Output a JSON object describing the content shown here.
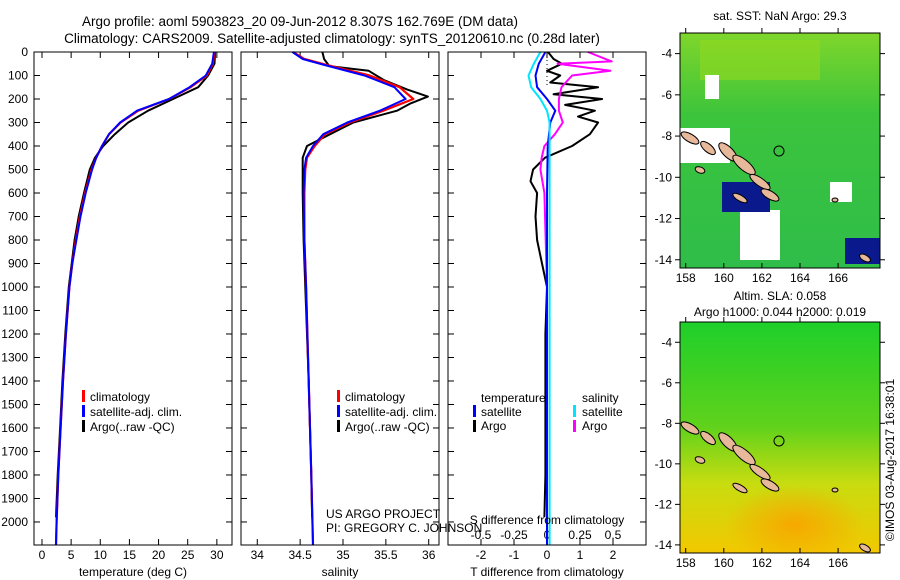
{
  "header": {
    "title_line1": "Argo profile: aoml 5903823_20 09-Jun-2012 8.307S 162.769E (DM data)",
    "title_line2": "Climatology: CARS2009. Satellite-adjusted climatology: synTS_20120610.nc (0.28d later)"
  },
  "colors": {
    "climatology": "#ff0000",
    "satellite": "#0000ff",
    "argo": "#000000",
    "sal_satellite": "#00e5ff",
    "sal_argo": "#ff00ff"
  },
  "chart_data": [
    {
      "type": "line",
      "title": "",
      "xlabel": "temperature (deg C)",
      "ylabel": "",
      "xlim": [
        -1.37,
        32.6
      ],
      "ylim": [
        2098,
        0
      ],
      "xticks": [
        0,
        5,
        10,
        15,
        20,
        25,
        30
      ],
      "yticks": [
        0,
        100,
        200,
        300,
        400,
        500,
        600,
        700,
        800,
        900,
        1000,
        1100,
        1200,
        1300,
        1400,
        1500,
        1600,
        1700,
        1800,
        1900,
        2000
      ],
      "legend": {
        "placement": "lower-center",
        "entries": [
          "climatology",
          "satellite-adj. clim.",
          "Argo(..raw -QC)"
        ]
      },
      "series": [
        {
          "name": "climatology",
          "depth": [
            0,
            50,
            100,
            150,
            200,
            250,
            300,
            350,
            400,
            450,
            500,
            600,
            700,
            800,
            900,
            1000,
            1200,
            1400,
            1600,
            1800,
            2000,
            2098
          ],
          "values": [
            29.6,
            29.3,
            28.3,
            25.5,
            21.8,
            16.5,
            13.5,
            11.5,
            10.3,
            9.3,
            8.5,
            7.4,
            6.5,
            5.8,
            5.2,
            4.7,
            4.1,
            3.6,
            3.2,
            2.8,
            2.5,
            2.4
          ]
        },
        {
          "name": "satellite-adj. clim.",
          "depth": [
            0,
            50,
            100,
            150,
            200,
            250,
            300,
            350,
            400,
            450,
            500,
            600,
            700,
            800,
            900,
            1000,
            1200,
            1400,
            1600,
            1800,
            2000,
            2098
          ],
          "values": [
            29.5,
            29.2,
            28.1,
            25.3,
            21.8,
            16.3,
            13.4,
            11.5,
            10.3,
            9.3,
            8.6,
            7.5,
            6.6,
            5.9,
            5.2,
            4.7,
            4.1,
            3.6,
            3.2,
            2.8,
            2.5,
            2.4
          ]
        },
        {
          "name": "Argo(..raw -QC)",
          "depth": [
            0,
            50,
            100,
            150,
            200,
            250,
            300,
            350,
            400,
            450,
            500,
            600,
            700,
            800,
            900,
            1000,
            1200,
            1400,
            1600,
            1800,
            1980
          ],
          "values": [
            29.7,
            29.6,
            28.5,
            26.8,
            22.5,
            18.2,
            14.8,
            12.5,
            10.5,
            9.1,
            8.2,
            7.2,
            6.3,
            5.6,
            5.1,
            4.6,
            4.0,
            3.5,
            3.1,
            2.7,
            2.4
          ]
        }
      ]
    },
    {
      "type": "line",
      "xlabel": "salinity",
      "xlim": [
        33.81,
        36.12
      ],
      "ylim": [
        2098,
        0
      ],
      "xticks": [
        34,
        34.5,
        35,
        35.5,
        36
      ],
      "legend": {
        "placement": "lower-center",
        "entries": [
          "climatology",
          "satellite-adj. clim.",
          "Argo(..raw -QC)"
        ]
      },
      "annotations": [
        "US ARGO PROJECT",
        "PI: GREGORY C. JOHNSON"
      ],
      "series": [
        {
          "name": "climatology",
          "depth": [
            0,
            30,
            55,
            100,
            150,
            200,
            250,
            300,
            350,
            400,
            450,
            500,
            600,
            800,
            1000,
            1400,
            1800,
            2098
          ],
          "values": [
            34.42,
            34.55,
            34.81,
            35.31,
            35.66,
            35.82,
            35.47,
            35.08,
            34.79,
            34.67,
            34.58,
            34.56,
            34.55,
            34.55,
            34.57,
            34.6,
            34.63,
            34.65
          ]
        },
        {
          "name": "satellite-adj. clim.",
          "depth": [
            0,
            30,
            55,
            100,
            150,
            200,
            250,
            300,
            350,
            400,
            450,
            500,
            600,
            800,
            1000,
            1400,
            1800,
            2098
          ],
          "values": [
            34.41,
            34.53,
            34.78,
            35.25,
            35.6,
            35.73,
            35.43,
            35.05,
            34.77,
            34.65,
            34.57,
            34.55,
            34.54,
            34.55,
            34.57,
            34.6,
            34.63,
            34.65
          ]
        },
        {
          "name": "Argo(..raw -QC)",
          "depth": [
            0,
            30,
            60,
            80,
            120,
            160,
            190,
            220,
            250,
            300,
            350,
            400,
            450,
            600,
            800,
            1000,
            1400,
            1800,
            1980
          ],
          "values": [
            34.76,
            34.78,
            34.84,
            35.3,
            35.48,
            35.75,
            35.99,
            35.78,
            35.63,
            35.12,
            34.85,
            34.58,
            34.53,
            34.53,
            34.54,
            34.56,
            34.6,
            34.63,
            34.64
          ]
        }
      ]
    },
    {
      "type": "line",
      "xlabel": "T difference from climatology",
      "x2label": "S difference from climatology",
      "xlim": [
        -3,
        3
      ],
      "x2lim": [
        -0.75,
        0.75
      ],
      "xticks": [
        -2,
        -1,
        0,
        1,
        2
      ],
      "x2ticks": [
        -0.5,
        -0.25,
        0,
        0.25,
        0.5
      ],
      "ylim": [
        2098,
        0
      ],
      "legend": {
        "placement": "lower-center",
        "temperature_title": "temperature",
        "salinity_title": "salinity",
        "entries": [
          "satellite",
          "Argo",
          "satellite",
          "Argo"
        ]
      },
      "series": [
        {
          "name": "temperature satellite",
          "variable": "T",
          "depth": [
            0,
            50,
            100,
            150,
            200,
            250,
            300,
            400,
            600,
            1000,
            2098
          ],
          "values": [
            -0.05,
            -0.25,
            -0.35,
            -0.3,
            0.0,
            0.25,
            0.1,
            0.02,
            0.0,
            0.0,
            0.0
          ]
        },
        {
          "name": "temperature Argo",
          "variable": "T",
          "depth": [
            0,
            30,
            50,
            80,
            100,
            130,
            150,
            180,
            200,
            225,
            250,
            275,
            300,
            350,
            400,
            450,
            500,
            550,
            600,
            700,
            800,
            900,
            1000,
            1200,
            1500,
            1800,
            1980
          ],
          "values": [
            0.03,
            0.2,
            0.45,
            0.0,
            0.4,
            0.1,
            1.55,
            0.2,
            1.67,
            0.55,
            1.45,
            0.94,
            1.55,
            1.3,
            0.76,
            -0.06,
            -0.42,
            -0.5,
            -0.3,
            -0.35,
            -0.3,
            -0.15,
            0.0,
            -0.05,
            -0.05,
            -0.05,
            -0.08
          ]
        },
        {
          "name": "salinity satellite",
          "variable": "S",
          "depth": [
            0,
            50,
            100,
            150,
            200,
            250,
            300,
            400,
            600,
            1000,
            2098
          ],
          "values": [
            -0.05,
            -0.1,
            -0.14,
            -0.12,
            -0.05,
            0.0,
            0.02,
            0.02,
            0.02,
            0.02,
            0.02
          ]
        },
        {
          "name": "salinity Argo",
          "variable": "S",
          "depth": [
            0,
            40,
            50,
            80,
            100,
            150,
            200,
            250,
            300,
            350,
            400,
            450,
            500,
            600,
            800,
            1000,
            1500,
            2098
          ],
          "values": [
            0.31,
            0.49,
            0.08,
            0.48,
            0.19,
            0.11,
            0.09,
            0.09,
            0.12,
            0.06,
            -0.02,
            -0.04,
            -0.05,
            -0.02,
            -0.01,
            0.0,
            0.0,
            0.0
          ]
        }
      ]
    },
    {
      "type": "heatmap",
      "title": "sat. SST: NaN Argo: 29.3",
      "xticks": [
        158,
        160,
        162,
        164,
        166
      ],
      "yticks": [
        -4,
        -6,
        -8,
        -10,
        -12,
        -14
      ],
      "xlim": [
        157.7,
        168.2
      ],
      "ylim": [
        -14.4,
        -3.0
      ],
      "marker": {
        "lon": 162.769,
        "lat": -8.307
      }
    },
    {
      "type": "heatmap",
      "title": "Altim. SLA: 0.058",
      "subtitle": "Argo h1000: 0.044 h2000: 0.019",
      "xticks": [
        158,
        160,
        162,
        164,
        166
      ],
      "yticks": [
        -4,
        -6,
        -8,
        -10,
        -12,
        -14
      ],
      "xlim": [
        157.7,
        168.2
      ],
      "ylim": [
        -14.4,
        -3.0
      ],
      "marker": {
        "lon": 162.769,
        "lat": -8.307
      }
    }
  ],
  "footer": {
    "credit": "©IMOS 03-Aug-2017 16:38:01"
  }
}
